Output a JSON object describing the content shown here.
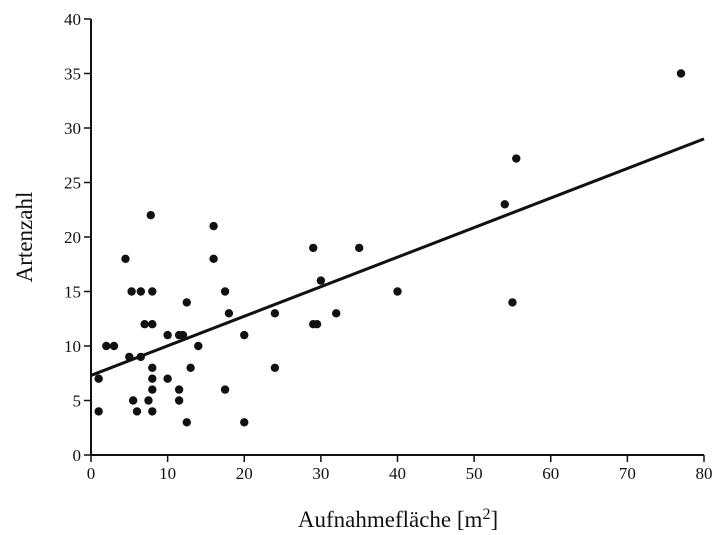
{
  "chart_data": {
    "type": "scatter",
    "title": "",
    "xlabel": "Aufnahmefläche [m",
    "xlabel_superscript": "2",
    "xlabel_close": "]",
    "ylabel": "Artenzahl",
    "xlim": [
      0,
      80
    ],
    "ylim": [
      0,
      40
    ],
    "x_ticks": [
      0,
      10,
      20,
      30,
      40,
      50,
      60,
      70,
      80
    ],
    "y_ticks": [
      0,
      5,
      10,
      15,
      20,
      25,
      30,
      35,
      40
    ],
    "x_tick_labels": [
      "0",
      "10",
      "20",
      "30",
      "40",
      "50",
      "60",
      "70",
      "80"
    ],
    "y_tick_labels": [
      "0",
      "5",
      "10",
      "15",
      "20",
      "25",
      "30",
      "35",
      "40"
    ],
    "grid": false,
    "legend": "none",
    "point_color": "#111111",
    "line_color": "#111111",
    "points": [
      {
        "x": 1,
        "y": 7
      },
      {
        "x": 1,
        "y": 4
      },
      {
        "x": 2,
        "y": 10
      },
      {
        "x": 3,
        "y": 10
      },
      {
        "x": 4.5,
        "y": 18
      },
      {
        "x": 5,
        "y": 9
      },
      {
        "x": 5.3,
        "y": 15
      },
      {
        "x": 5.5,
        "y": 5
      },
      {
        "x": 6,
        "y": 4
      },
      {
        "x": 6.5,
        "y": 15
      },
      {
        "x": 6.5,
        "y": 9
      },
      {
        "x": 7,
        "y": 12
      },
      {
        "x": 7.5,
        "y": 5
      },
      {
        "x": 7.8,
        "y": 22
      },
      {
        "x": 8,
        "y": 15
      },
      {
        "x": 8,
        "y": 12
      },
      {
        "x": 8,
        "y": 8
      },
      {
        "x": 8,
        "y": 7
      },
      {
        "x": 8,
        "y": 6
      },
      {
        "x": 8,
        "y": 4
      },
      {
        "x": 10,
        "y": 11
      },
      {
        "x": 10,
        "y": 7
      },
      {
        "x": 11.5,
        "y": 11
      },
      {
        "x": 11.5,
        "y": 6
      },
      {
        "x": 11.5,
        "y": 5
      },
      {
        "x": 12,
        "y": 11
      },
      {
        "x": 12.5,
        "y": 14
      },
      {
        "x": 12.5,
        "y": 3
      },
      {
        "x": 13,
        "y": 8
      },
      {
        "x": 14,
        "y": 10
      },
      {
        "x": 16,
        "y": 21
      },
      {
        "x": 16,
        "y": 18
      },
      {
        "x": 17.5,
        "y": 15
      },
      {
        "x": 17.5,
        "y": 6
      },
      {
        "x": 18,
        "y": 13
      },
      {
        "x": 20,
        "y": 11
      },
      {
        "x": 20,
        "y": 3
      },
      {
        "x": 24,
        "y": 13
      },
      {
        "x": 24,
        "y": 8
      },
      {
        "x": 29,
        "y": 12
      },
      {
        "x": 29,
        "y": 19
      },
      {
        "x": 29.5,
        "y": 12
      },
      {
        "x": 30,
        "y": 16
      },
      {
        "x": 32,
        "y": 13
      },
      {
        "x": 35,
        "y": 19
      },
      {
        "x": 40,
        "y": 15
      },
      {
        "x": 54,
        "y": 23
      },
      {
        "x": 55,
        "y": 14
      },
      {
        "x": 55.5,
        "y": 27.2
      },
      {
        "x": 77,
        "y": 35
      }
    ],
    "regression_line": {
      "x_start": 0,
      "y_start": 7.3,
      "x_end": 80,
      "y_end": 29.0
    }
  }
}
